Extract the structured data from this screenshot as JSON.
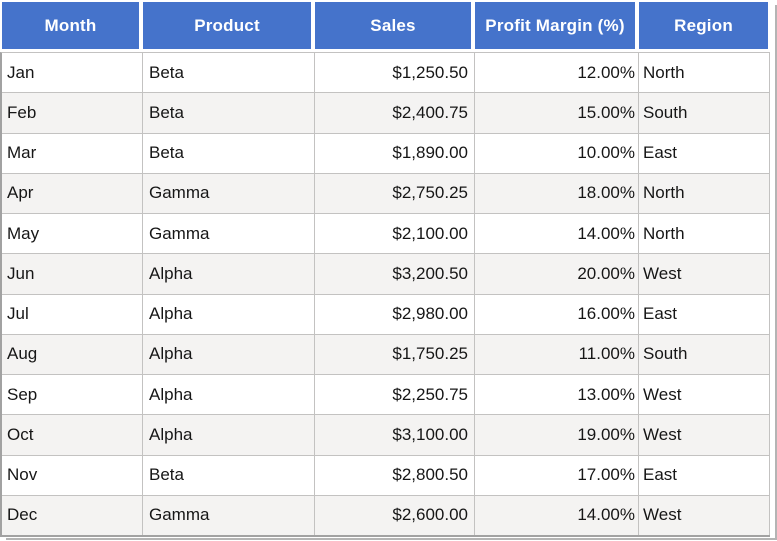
{
  "chart_data": {
    "type": "table",
    "columns": [
      {
        "key": "month",
        "label": "Month",
        "align": "left"
      },
      {
        "key": "product",
        "label": "Product",
        "align": "left"
      },
      {
        "key": "sales",
        "label": "Sales",
        "align": "right"
      },
      {
        "key": "profit-margin",
        "label": "Profit Margin (%)",
        "align": "right"
      },
      {
        "key": "region",
        "label": "Region",
        "align": "left"
      }
    ],
    "rows": [
      [
        "Jan",
        "Beta",
        "$1,250.50",
        "12.00%",
        "North"
      ],
      [
        "Feb",
        "Beta",
        "$2,400.75",
        "15.00%",
        "South"
      ],
      [
        "Mar",
        "Beta",
        "$1,890.00",
        "10.00%",
        "East"
      ],
      [
        "Apr",
        "Gamma",
        "$2,750.25",
        "18.00%",
        "North"
      ],
      [
        "May",
        "Gamma",
        "$2,100.00",
        "14.00%",
        "North"
      ],
      [
        "Jun",
        "Alpha",
        "$3,200.50",
        "20.00%",
        "West"
      ],
      [
        "Jul",
        "Alpha",
        "$2,980.00",
        "16.00%",
        "East"
      ],
      [
        "Aug",
        "Alpha",
        "$1,750.25",
        "11.00%",
        "South"
      ],
      [
        "Sep",
        "Alpha",
        "$2,250.75",
        "13.00%",
        "West"
      ],
      [
        "Oct",
        "Alpha",
        "$3,100.00",
        "19.00%",
        "West"
      ],
      [
        "Nov",
        "Beta",
        "$2,800.50",
        "17.00%",
        "East"
      ],
      [
        "Dec",
        "Gamma",
        "$2,600.00",
        "14.00%",
        "West"
      ]
    ]
  },
  "colors": {
    "header_bg": "#4573CB",
    "header_text": "#FFFFFF",
    "row_bg": "#FFFFFF",
    "row_alt_bg": "#F4F3F2",
    "grid_line": "#C3C2C1",
    "outer_border": "#A2A2A2",
    "body_text": "#161616",
    "shadow": "#B4B4B4"
  }
}
